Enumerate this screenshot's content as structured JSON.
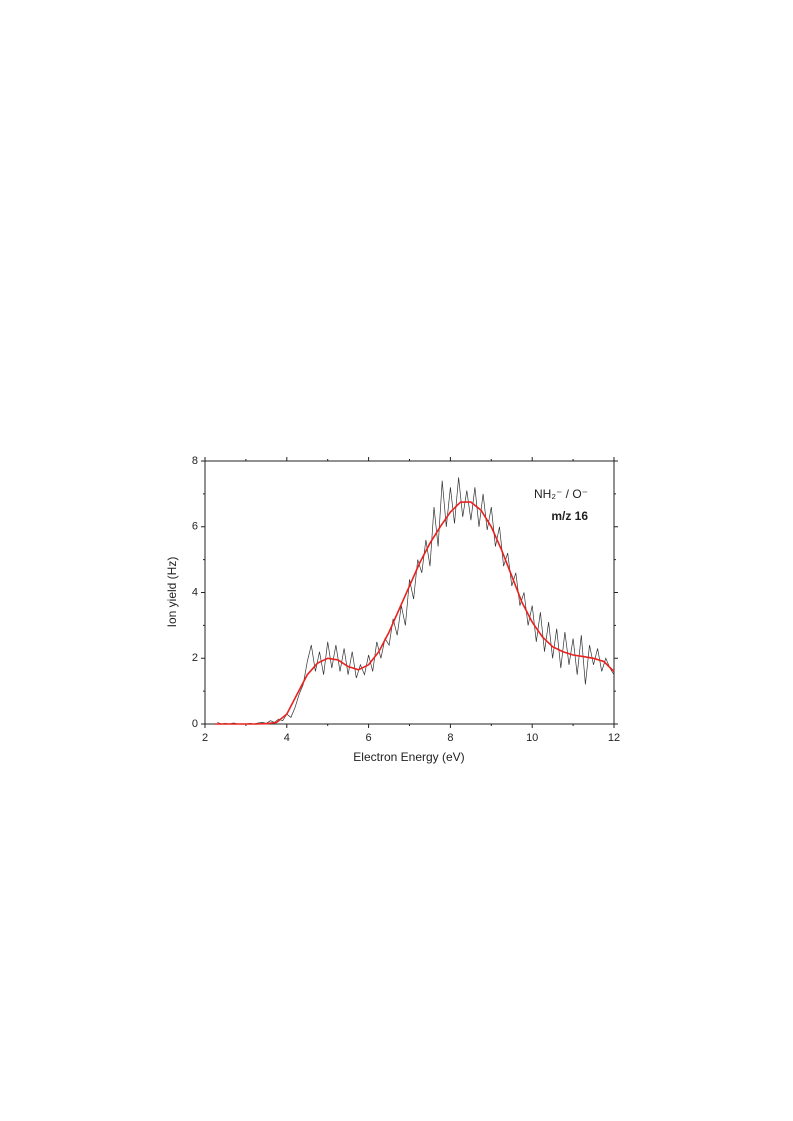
{
  "chart_data": {
    "type": "line",
    "xlabel": "Electron Energy (eV)",
    "ylabel": "Ion yield (Hz)",
    "annotations": [
      "NH₂⁻ / O⁻",
      "m/z 16"
    ],
    "xlim": [
      2,
      12
    ],
    "xticks": [
      2,
      4,
      6,
      8,
      10,
      12
    ],
    "ylim": [
      0,
      8
    ],
    "yticks": [
      0,
      2,
      4,
      6,
      8
    ],
    "series": [
      {
        "color": "#333333",
        "x": [
          2.3,
          2.4,
          2.5,
          2.6,
          2.7,
          2.8,
          2.9,
          3.0,
          3.1,
          3.2,
          3.3,
          3.4,
          3.5,
          3.6,
          3.7,
          3.8,
          3.9,
          4.0,
          4.1,
          4.2,
          4.3,
          4.4,
          4.5,
          4.6,
          4.7,
          4.8,
          4.9,
          5.0,
          5.1,
          5.2,
          5.3,
          5.4,
          5.5,
          5.6,
          5.7,
          5.8,
          5.9,
          6.0,
          6.1,
          6.2,
          6.3,
          6.4,
          6.5,
          6.6,
          6.7,
          6.8,
          6.9,
          7.0,
          7.1,
          7.2,
          7.3,
          7.4,
          7.5,
          7.6,
          7.7,
          7.8,
          7.9,
          8.0,
          8.1,
          8.2,
          8.3,
          8.4,
          8.5,
          8.6,
          8.7,
          8.8,
          8.9,
          9.0,
          9.1,
          9.2,
          9.3,
          9.4,
          9.5,
          9.6,
          9.7,
          9.8,
          9.9,
          10.0,
          10.1,
          10.2,
          10.3,
          10.4,
          10.5,
          10.6,
          10.7,
          10.8,
          10.9,
          11.0,
          11.1,
          11.2,
          11.3,
          11.4,
          11.5,
          11.6,
          11.7,
          11.8,
          11.9,
          12.0
        ],
        "values": [
          0.05,
          0,
          0.02,
          0,
          0.03,
          0,
          0.01,
          0,
          0.02,
          0,
          0.03,
          0.05,
          0.02,
          0.1,
          0.05,
          0.15,
          0.1,
          0.3,
          0.2,
          0.5,
          0.9,
          1.2,
          1.9,
          2.4,
          1.6,
          2.2,
          1.5,
          2.5,
          1.7,
          2.4,
          1.6,
          2.3,
          1.5,
          2.2,
          1.4,
          1.8,
          1.5,
          2.1,
          1.6,
          2.5,
          2.0,
          2.6,
          2.4,
          3.2,
          2.7,
          3.6,
          3.0,
          4.4,
          3.8,
          5.0,
          4.6,
          5.6,
          4.8,
          6.6,
          5.4,
          7.4,
          6.0,
          7.2,
          6.1,
          7.5,
          6.3,
          7.1,
          6.2,
          7.2,
          6.0,
          7.0,
          5.9,
          6.6,
          5.4,
          6.0,
          4.8,
          5.2,
          4.2,
          4.6,
          3.6,
          4.0,
          3.0,
          3.6,
          2.5,
          3.4,
          2.2,
          3.1,
          2.0,
          2.9,
          1.7,
          2.8,
          1.8,
          2.6,
          1.5,
          2.7,
          1.2,
          2.4,
          1.8,
          2.3,
          1.6,
          2.0,
          1.7,
          1.5
        ]
      },
      {
        "color": "#e8231f",
        "x": [
          2.25,
          2.5,
          2.75,
          3.0,
          3.25,
          3.5,
          3.75,
          4.0,
          4.25,
          4.5,
          4.75,
          5.0,
          5.25,
          5.5,
          5.75,
          6.0,
          6.25,
          6.5,
          6.75,
          7.0,
          7.25,
          7.5,
          7.75,
          8.0,
          8.25,
          8.5,
          8.75,
          9.0,
          9.25,
          9.5,
          9.75,
          10.0,
          10.25,
          10.5,
          10.75,
          11.0,
          11.25,
          11.5,
          11.75,
          12.0
        ],
        "values": [
          0,
          0,
          0,
          0,
          0,
          0.01,
          0.05,
          0.3,
          0.9,
          1.5,
          1.85,
          2.0,
          1.95,
          1.75,
          1.65,
          1.8,
          2.2,
          2.8,
          3.5,
          4.2,
          4.9,
          5.5,
          6.0,
          6.45,
          6.75,
          6.75,
          6.5,
          6.0,
          5.3,
          4.5,
          3.7,
          3.1,
          2.65,
          2.35,
          2.2,
          2.1,
          2.05,
          2.0,
          1.9,
          1.6
        ]
      }
    ]
  }
}
